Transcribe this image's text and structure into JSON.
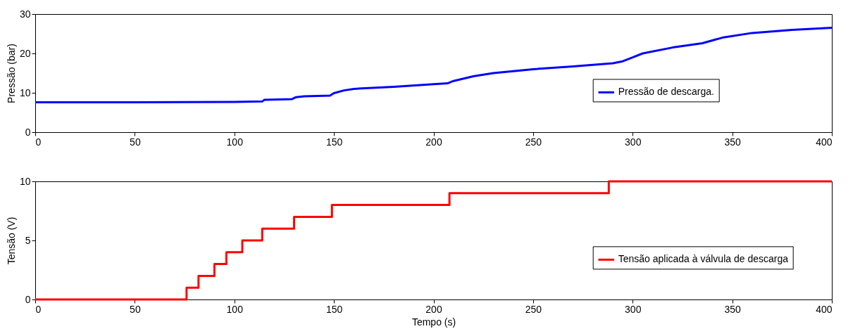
{
  "chart_data": [
    {
      "type": "line",
      "ylabel": "Pressão (bar)",
      "xlim": [
        0,
        400
      ],
      "xticks": [
        0,
        50,
        100,
        150,
        200,
        250,
        300,
        350,
        400
      ],
      "ylim": [
        0,
        30
      ],
      "yticks": [
        0,
        10,
        20,
        30
      ],
      "grid": false,
      "legend": "right",
      "line_style": "solid",
      "marker": "none",
      "x": [
        0,
        50,
        100,
        114,
        115,
        129,
        131,
        135,
        148,
        150,
        155,
        160,
        180,
        200,
        207,
        210,
        220,
        230,
        250,
        270,
        290,
        295,
        300,
        305,
        320,
        335,
        345,
        360,
        380,
        400
      ],
      "series": [
        {
          "name": "Pressão de descarga.",
          "color": "#0000ff",
          "values": [
            7.6,
            7.6,
            7.7,
            7.8,
            8.2,
            8.4,
            8.9,
            9.1,
            9.3,
            9.9,
            10.6,
            11.0,
            11.5,
            12.2,
            12.4,
            13.0,
            14.2,
            15.0,
            16.0,
            16.7,
            17.5,
            18.0,
            19.0,
            20.0,
            21.5,
            22.6,
            24.0,
            25.2,
            26.0,
            26.5
          ]
        }
      ]
    },
    {
      "type": "step",
      "xlabel": "Tempo (s)",
      "ylabel": "Tensão (V)",
      "xlim": [
        0,
        400
      ],
      "xticks": [
        0,
        50,
        100,
        150,
        200,
        250,
        300,
        350,
        400
      ],
      "ylim": [
        0,
        10
      ],
      "yticks": [
        0,
        5,
        10
      ],
      "grid": false,
      "legend": "right",
      "line_style": "solid",
      "marker": "none",
      "x": [
        0,
        76,
        82,
        90,
        96,
        104,
        114,
        130,
        149,
        208,
        288,
        400
      ],
      "series": [
        {
          "name": "Tensão aplicada à válvula de descarga",
          "color": "#ff0000",
          "values": [
            0,
            1,
            2,
            3,
            4,
            5,
            6,
            7,
            8,
            9,
            10,
            10
          ]
        }
      ]
    }
  ]
}
